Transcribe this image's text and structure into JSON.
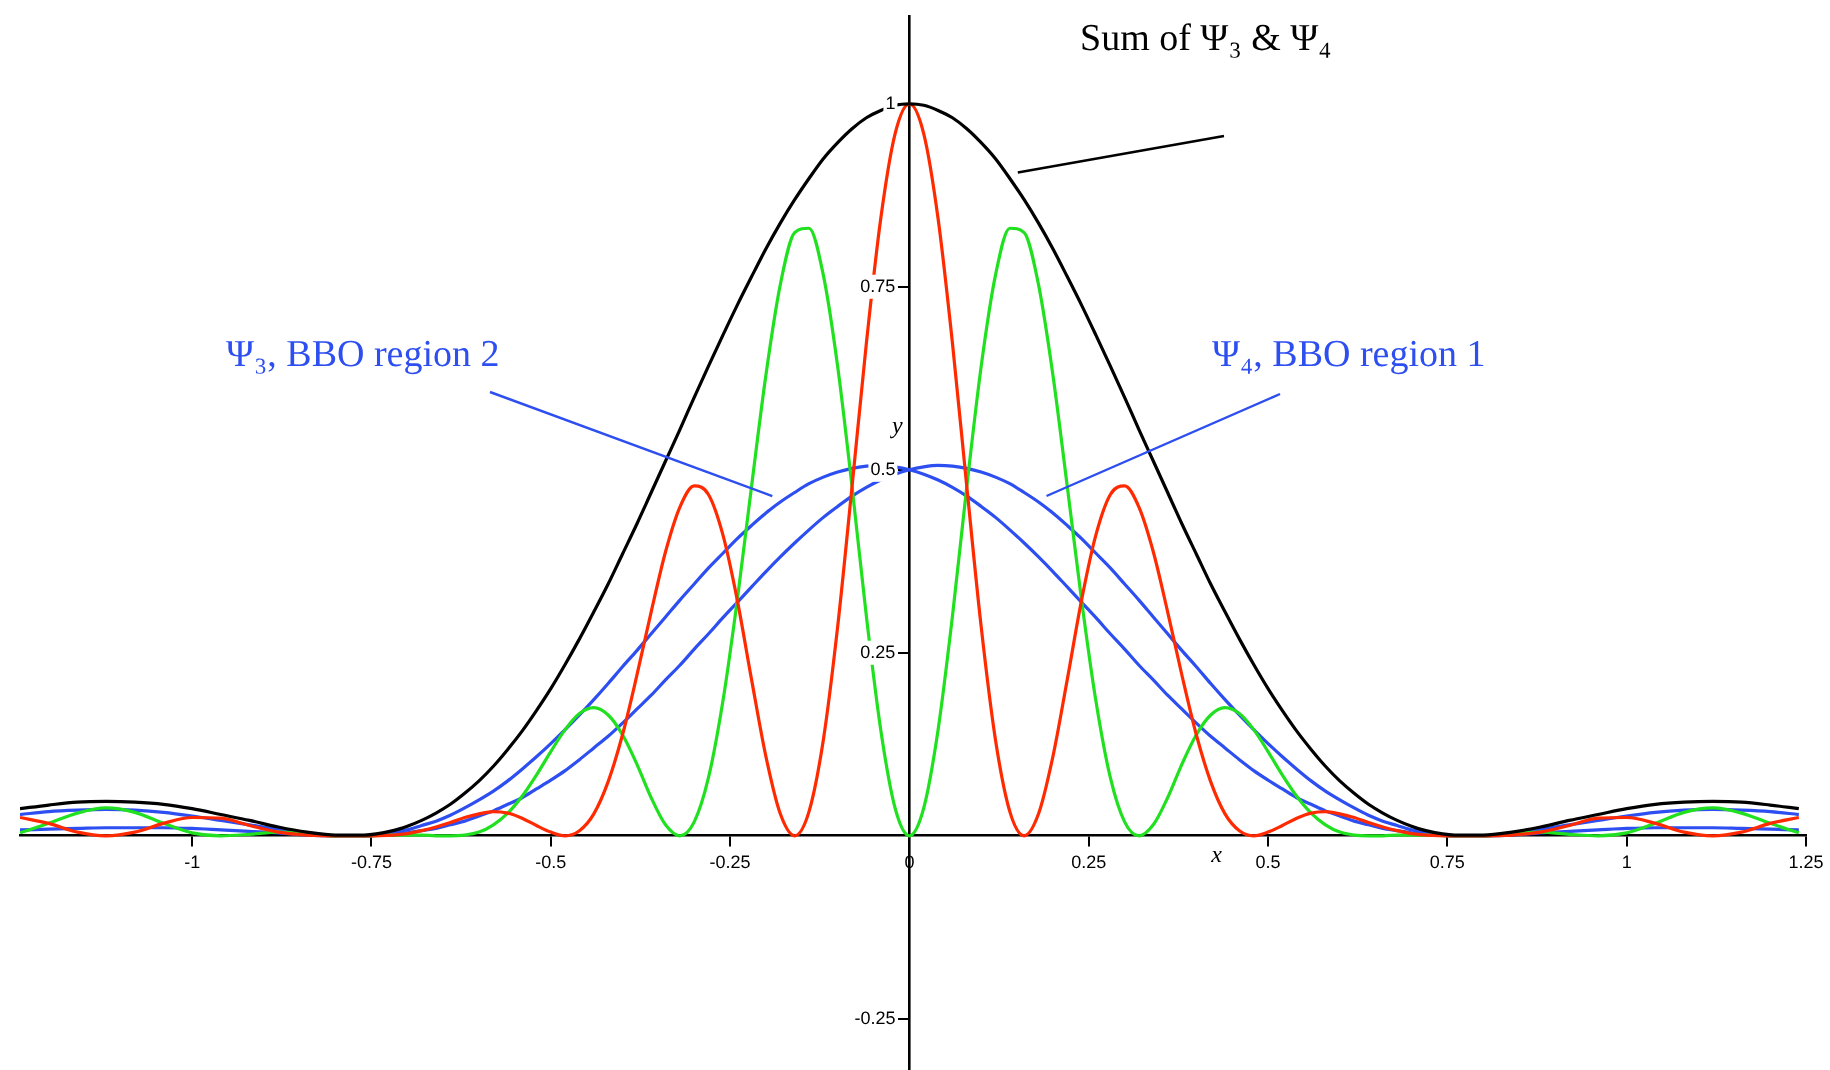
{
  "chart_data": {
    "type": "line",
    "xlabel": "x",
    "ylabel": "y",
    "xlim": [
      -1.24,
      1.25
    ],
    "ylim": [
      -0.32,
      1.12
    ],
    "xticks": [
      -1,
      -0.75,
      -0.5,
      -0.25,
      0,
      0.25,
      0.5,
      0.75,
      1,
      1.25
    ],
    "yticks": [
      -0.25,
      0.25,
      0.5,
      0.75,
      1
    ],
    "legend": false,
    "marker": "none",
    "x": [
      -1.24,
      -1.2,
      -1.16,
      -1.12,
      -1.08,
      -1.04,
      -1,
      -0.96,
      -0.92,
      -0.88,
      -0.84,
      -0.8,
      -0.76,
      -0.72,
      -0.7,
      -0.68,
      -0.66,
      -0.64,
      -0.62,
      -0.6,
      -0.58,
      -0.56,
      -0.54,
      -0.52,
      -0.5,
      -0.48,
      -0.46,
      -0.44,
      -0.42,
      -0.4,
      -0.38,
      -0.36,
      -0.34,
      -0.32,
      -0.3,
      -0.28,
      -0.26,
      -0.24,
      -0.22,
      -0.2,
      -0.18,
      -0.16,
      -0.14,
      -0.12,
      -0.1,
      -0.08,
      -0.06,
      -0.04,
      -0.02,
      0,
      0.02,
      0.04,
      0.06,
      0.08,
      0.1,
      0.12,
      0.14,
      0.16,
      0.18,
      0.2,
      0.22,
      0.24,
      0.26,
      0.28,
      0.3,
      0.32,
      0.34,
      0.36,
      0.38,
      0.4,
      0.42,
      0.44,
      0.46,
      0.48,
      0.5,
      0.52,
      0.54,
      0.56,
      0.58,
      0.6,
      0.62,
      0.64,
      0.66,
      0.68,
      0.7,
      0.72,
      0.76,
      0.8,
      0.84,
      0.88,
      0.92,
      0.96,
      1,
      1.04,
      1.08,
      1.12,
      1.16,
      1.2,
      1.24
    ],
    "series": [
      {
        "name": "Sum of Ψ₃ & Ψ₄",
        "color": "#000000",
        "values": [
          0.037,
          0.042,
          0.046,
          0.047,
          0.046,
          0.043,
          0.037,
          0.029,
          0.021,
          0.012,
          0.005,
          0.001,
          0.001,
          0.007,
          0.013,
          0.021,
          0.031,
          0.043,
          0.058,
          0.075,
          0.095,
          0.118,
          0.143,
          0.171,
          0.201,
          0.234,
          0.269,
          0.306,
          0.344,
          0.385,
          0.426,
          0.469,
          0.512,
          0.555,
          0.599,
          0.642,
          0.684,
          0.725,
          0.764,
          0.802,
          0.837,
          0.869,
          0.898,
          0.925,
          0.947,
          0.966,
          0.981,
          0.991,
          0.998,
          1,
          0.998,
          0.991,
          0.981,
          0.966,
          0.947,
          0.925,
          0.898,
          0.869,
          0.837,
          0.802,
          0.764,
          0.725,
          0.684,
          0.642,
          0.599,
          0.555,
          0.512,
          0.469,
          0.426,
          0.385,
          0.344,
          0.306,
          0.269,
          0.234,
          0.201,
          0.171,
          0.143,
          0.118,
          0.095,
          0.075,
          0.058,
          0.043,
          0.031,
          0.021,
          0.013,
          0.007,
          0.001,
          0.001,
          0.005,
          0.012,
          0.021,
          0.029,
          0.037,
          0.043,
          0.046,
          0.047,
          0.046,
          0.042,
          0.037
        ]
      },
      {
        "color": "#ff2a00",
        "values": [
          0.025,
          0.017,
          0.005,
          0,
          0.005,
          0.017,
          0.025,
          0.024,
          0.014,
          0.005,
          0.001,
          0,
          0,
          0.001,
          0.003,
          0.007,
          0.012,
          0.018,
          0.025,
          0.03,
          0.033,
          0.031,
          0.024,
          0.014,
          0.005,
          0,
          0.007,
          0.03,
          0.074,
          0.138,
          0.219,
          0.306,
          0.388,
          0.449,
          0.478,
          0.466,
          0.411,
          0.322,
          0.213,
          0.108,
          0.03,
          0,
          0.033,
          0.131,
          0.286,
          0.477,
          0.673,
          0.843,
          0.959,
          1,
          0.959,
          0.843,
          0.673,
          0.477,
          0.286,
          0.131,
          0.033,
          0,
          0.03,
          0.108,
          0.213,
          0.322,
          0.411,
          0.466,
          0.478,
          0.449,
          0.388,
          0.306,
          0.219,
          0.138,
          0.074,
          0.03,
          0.007,
          0,
          0.005,
          0.014,
          0.024,
          0.031,
          0.033,
          0.03,
          0.025,
          0.018,
          0.012,
          0.007,
          0.003,
          0.001,
          0,
          0,
          0.001,
          0.005,
          0.014,
          0.024,
          0.025,
          0.017,
          0.005,
          0,
          0.005,
          0.017,
          0.025
        ]
      },
      {
        "color": "#20e020",
        "values": [
          0.004,
          0.017,
          0.031,
          0.038,
          0.032,
          0.017,
          0.004,
          0,
          0.002,
          0.005,
          0.003,
          0,
          0,
          0.001,
          0.001,
          0.001,
          0,
          0,
          0.001,
          0.005,
          0.015,
          0.031,
          0.054,
          0.083,
          0.115,
          0.145,
          0.167,
          0.175,
          0.165,
          0.138,
          0.098,
          0.052,
          0.015,
          0,
          0.019,
          0.08,
          0.184,
          0.322,
          0.478,
          0.63,
          0.753,
          0.824,
          0.83,
          0.766,
          0.641,
          0.477,
          0.3,
          0.145,
          0.038,
          0,
          0.038,
          0.145,
          0.3,
          0.477,
          0.641,
          0.766,
          0.83,
          0.824,
          0.753,
          0.63,
          0.478,
          0.322,
          0.184,
          0.08,
          0.019,
          0,
          0.015,
          0.052,
          0.098,
          0.138,
          0.165,
          0.175,
          0.167,
          0.145,
          0.115,
          0.083,
          0.054,
          0.031,
          0.015,
          0.005,
          0.001,
          0,
          0,
          0.001,
          0.001,
          0.001,
          0,
          0,
          0.003,
          0.005,
          0.002,
          0,
          0.004,
          0.017,
          0.032,
          0.038,
          0.031,
          0.017,
          0.004
        ]
      },
      {
        "name": "Ψ₃, BBO region 2",
        "color": "#2d4ef0",
        "values": [
          0.029,
          0.033,
          0.035,
          0.036,
          0.035,
          0.032,
          0.027,
          0.021,
          0.015,
          0.009,
          0.004,
          0,
          0,
          0.005,
          0.008,
          0.014,
          0.02,
          0.028,
          0.038,
          0.049,
          0.061,
          0.075,
          0.091,
          0.108,
          0.126,
          0.145,
          0.165,
          0.186,
          0.208,
          0.231,
          0.253,
          0.276,
          0.299,
          0.322,
          0.344,
          0.366,
          0.386,
          0.406,
          0.424,
          0.441,
          0.456,
          0.469,
          0.481,
          0.49,
          0.497,
          0.502,
          0.505,
          0.506,
          0.504,
          0.5,
          0.494,
          0.486,
          0.476,
          0.464,
          0.45,
          0.435,
          0.418,
          0.4,
          0.381,
          0.361,
          0.34,
          0.319,
          0.298,
          0.276,
          0.255,
          0.233,
          0.213,
          0.192,
          0.173,
          0.154,
          0.136,
          0.12,
          0.104,
          0.089,
          0.076,
          0.064,
          0.052,
          0.043,
          0.034,
          0.027,
          0.02,
          0.015,
          0.01,
          0.007,
          0.004,
          0.002,
          0,
          0,
          0.001,
          0.004,
          0.006,
          0.008,
          0.01,
          0.011,
          0.011,
          0.011,
          0.01,
          0.009,
          0.008
        ]
      },
      {
        "name": "Ψ₄, BBO region 1",
        "color": "#2d4ef0",
        "values": [
          0.008,
          0.009,
          0.01,
          0.011,
          0.011,
          0.011,
          0.01,
          0.008,
          0.006,
          0.004,
          0.001,
          0,
          0,
          0.002,
          0.004,
          0.007,
          0.01,
          0.015,
          0.02,
          0.027,
          0.034,
          0.043,
          0.052,
          0.064,
          0.076,
          0.089,
          0.104,
          0.12,
          0.136,
          0.154,
          0.173,
          0.192,
          0.213,
          0.233,
          0.255,
          0.276,
          0.298,
          0.319,
          0.34,
          0.361,
          0.381,
          0.4,
          0.418,
          0.435,
          0.45,
          0.464,
          0.476,
          0.486,
          0.494,
          0.5,
          0.504,
          0.506,
          0.505,
          0.502,
          0.497,
          0.49,
          0.481,
          0.469,
          0.456,
          0.441,
          0.424,
          0.406,
          0.386,
          0.366,
          0.344,
          0.322,
          0.299,
          0.276,
          0.253,
          0.231,
          0.208,
          0.186,
          0.165,
          0.145,
          0.126,
          0.108,
          0.091,
          0.075,
          0.061,
          0.049,
          0.038,
          0.028,
          0.02,
          0.014,
          0.008,
          0.005,
          0,
          0,
          0.004,
          0.009,
          0.015,
          0.021,
          0.027,
          0.032,
          0.035,
          0.036,
          0.035,
          0.033,
          0.029
        ]
      }
    ]
  }
}
